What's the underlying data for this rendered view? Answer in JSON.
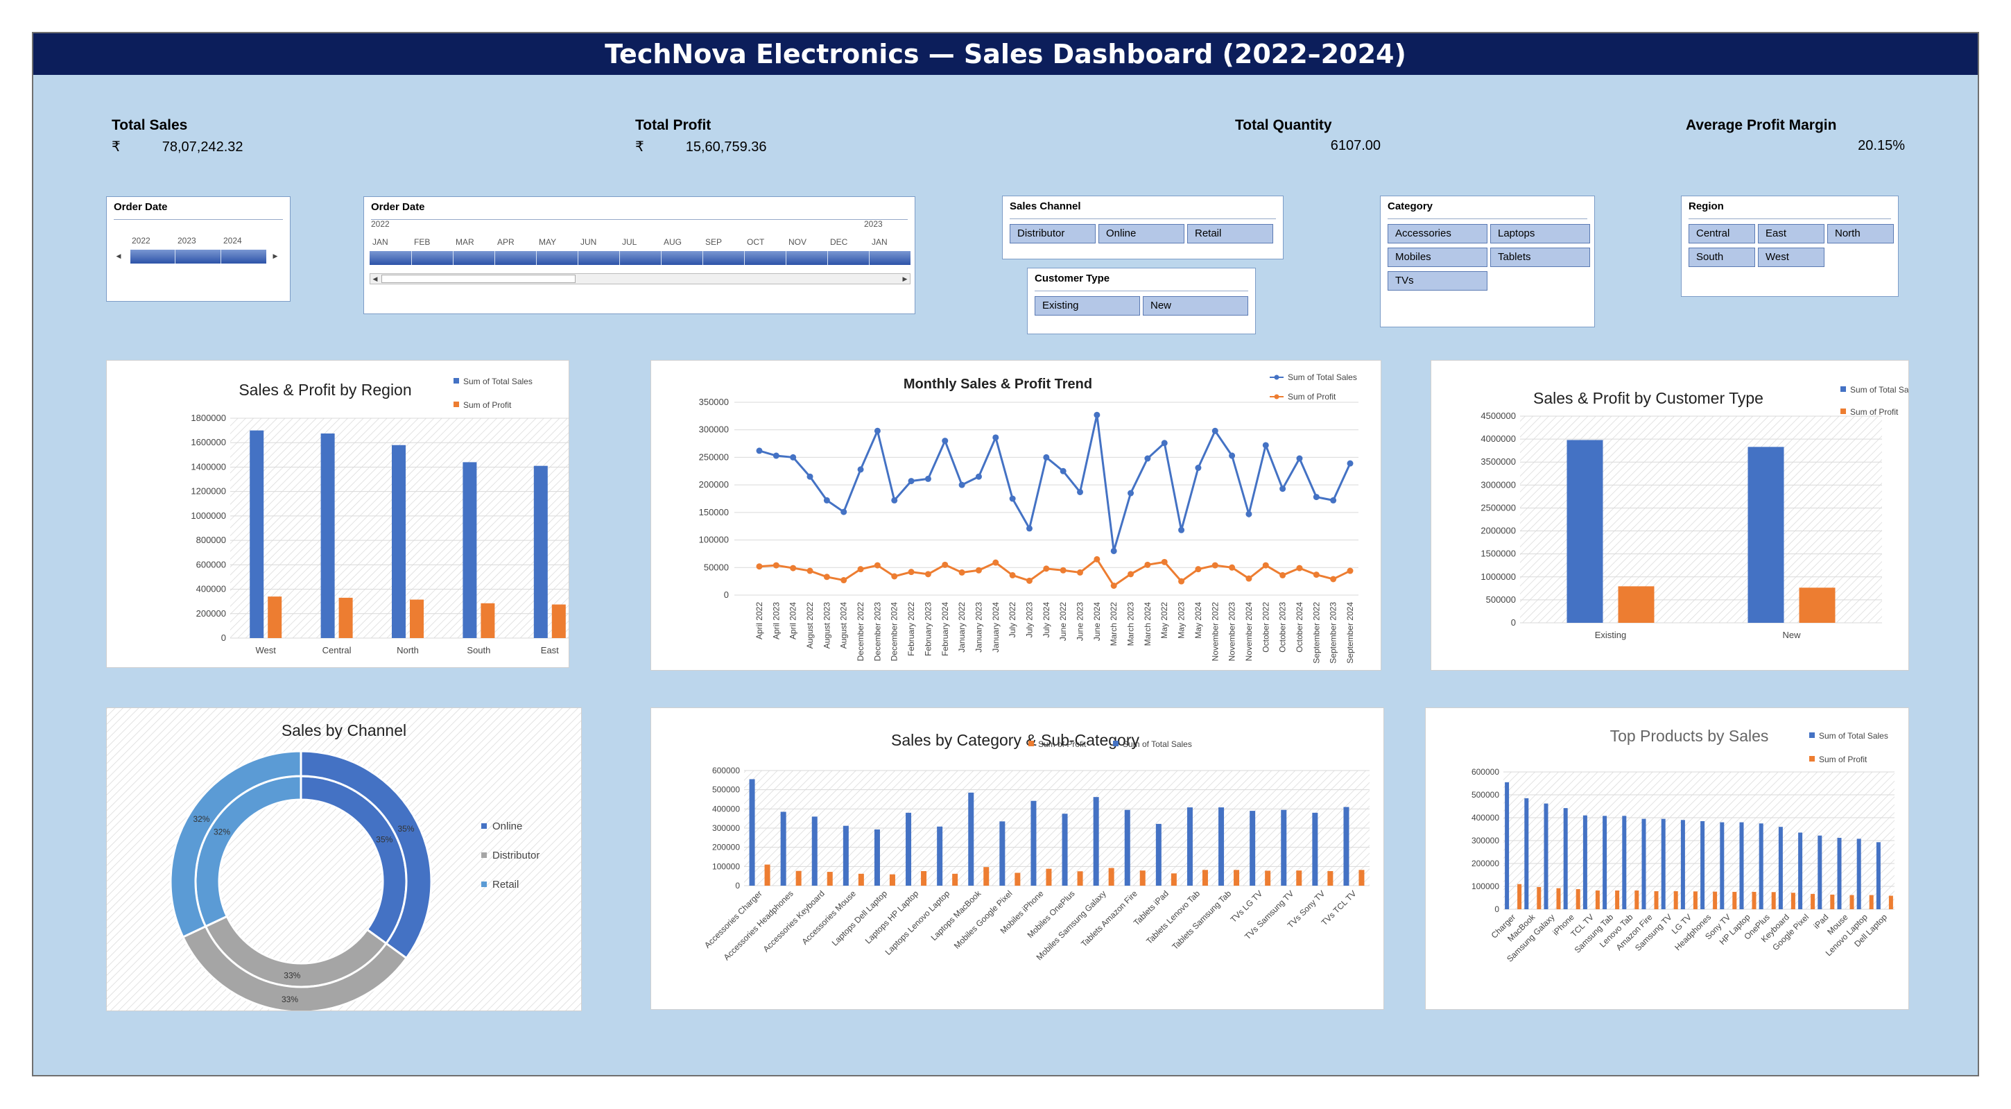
{
  "header": {
    "title": "TechNova Electronics — Sales Dashboard (2022–2024)"
  },
  "kpis": {
    "total_sales": {
      "label": "Total Sales",
      "currency": "₹",
      "value": "78,07,242.32"
    },
    "total_profit": {
      "label": "Total Profit",
      "currency": "₹",
      "value": "15,60,759.36"
    },
    "total_quantity": {
      "label": "Total Quantity",
      "value": "6107.00"
    },
    "avg_margin": {
      "label": "Average Profit Margin",
      "value": "20.15%"
    }
  },
  "slicers": {
    "order_date_years": {
      "title": "Order Date",
      "years": [
        "2022",
        "2023",
        "2024"
      ]
    },
    "order_date_months": {
      "title": "Order Date",
      "year_start": "2022",
      "year_next": "2023",
      "months": [
        "JAN",
        "FEB",
        "MAR",
        "APR",
        "MAY",
        "JUN",
        "JUL",
        "AUG",
        "SEP",
        "OCT",
        "NOV",
        "DEC",
        "JAN"
      ]
    },
    "sales_channel": {
      "title": "Sales Channel",
      "items": [
        "Distributor",
        "Online",
        "Retail"
      ]
    },
    "customer_type": {
      "title": "Customer Type",
      "items": [
        "Existing",
        "New"
      ]
    },
    "category": {
      "title": "Category",
      "items": [
        "Accessories",
        "Laptops",
        "Mobiles",
        "Tablets",
        "TVs"
      ]
    },
    "region": {
      "title": "Region",
      "items": [
        "Central",
        "East",
        "North",
        "South",
        "West"
      ]
    }
  },
  "legend": {
    "sales": "Sum of Total Sales",
    "profit": "Sum of Profit"
  },
  "colors": {
    "sales": "#4472c4",
    "profit": "#ed7d31",
    "online": "#4472c4",
    "distributor": "#a5a5a5",
    "retail": "#5b9bd5"
  },
  "chart_data": [
    {
      "id": "region",
      "type": "bar",
      "title": "Sales & Profit by Region",
      "categories": [
        "West",
        "Central",
        "North",
        "South",
        "East"
      ],
      "series": [
        {
          "name": "Sum of Total Sales",
          "values": [
            1700000,
            1675000,
            1580000,
            1440000,
            1410000
          ]
        },
        {
          "name": "Sum of Profit",
          "values": [
            340000,
            330000,
            315000,
            285000,
            275000
          ]
        }
      ],
      "yticks": [
        "0",
        "200000",
        "400000",
        "600000",
        "800000",
        "1000000",
        "1200000",
        "1400000",
        "1600000",
        "1800000"
      ],
      "ylim": [
        0,
        1800000
      ]
    },
    {
      "id": "trend",
      "type": "line",
      "title": "Monthly Sales & Profit Trend",
      "x": [
        "April 2022",
        "April 2023",
        "April 2024",
        "August 2022",
        "August 2023",
        "August 2024",
        "December 2022",
        "December 2023",
        "December 2024",
        "February 2022",
        "February 2023",
        "February 2024",
        "January 2022",
        "January 2023",
        "January 2024",
        "July 2022",
        "July 2023",
        "July 2024",
        "June 2022",
        "June 2023",
        "June 2024",
        "March 2022",
        "March 2023",
        "March 2024",
        "May 2022",
        "May 2023",
        "May 2024",
        "November 2022",
        "November 2023",
        "November 2024",
        "October 2022",
        "October 2023",
        "October 2024",
        "September 2022",
        "September 2023",
        "September 2024"
      ],
      "series": [
        {
          "name": "Sum of Total Sales",
          "values": [
            262000,
            253000,
            250000,
            215000,
            172000,
            151000,
            228000,
            298000,
            172000,
            207000,
            211000,
            280000,
            200000,
            215000,
            286000,
            175000,
            121000,
            250000,
            225000,
            187000,
            327000,
            80000,
            185000,
            248000,
            276000,
            118000,
            231000,
            298000,
            253000,
            147000,
            272000,
            193000,
            248000,
            178000,
            172000,
            239000
          ]
        },
        {
          "name": "Sum of Profit",
          "values": [
            52000,
            54000,
            49000,
            44000,
            33000,
            27000,
            47000,
            54000,
            34000,
            42000,
            38000,
            55000,
            41000,
            45000,
            59000,
            36000,
            26000,
            48000,
            45000,
            41000,
            65000,
            17000,
            38000,
            55000,
            60000,
            25000,
            47000,
            54000,
            50000,
            30000,
            54000,
            36000,
            49000,
            37000,
            29000,
            44000
          ]
        }
      ],
      "yticks": [
        "0",
        "50000",
        "100000",
        "150000",
        "200000",
        "250000",
        "300000",
        "350000"
      ],
      "ylim": [
        0,
        350000
      ]
    },
    {
      "id": "customer",
      "type": "bar",
      "title": "Sales & Profit by Customer Type",
      "categories": [
        "Existing",
        "New"
      ],
      "series": [
        {
          "name": "Sum of Total Sales",
          "values": [
            3980000,
            3830000
          ]
        },
        {
          "name": "Sum of Profit",
          "values": [
            795000,
            765000
          ]
        }
      ],
      "yticks": [
        "0",
        "500000",
        "1000000",
        "1500000",
        "2000000",
        "2500000",
        "3000000",
        "3500000",
        "4000000",
        "4500000"
      ],
      "ylim": [
        0,
        4500000
      ]
    },
    {
      "id": "channel",
      "type": "pie",
      "title": "Sales by Channel",
      "categories": [
        "Online",
        "Distributor",
        "Retail"
      ],
      "rings": [
        {
          "values": [
            35,
            33,
            32
          ],
          "labels": [
            "35%",
            "33%",
            "32%"
          ]
        },
        {
          "values": [
            35,
            33,
            32
          ],
          "labels": [
            "35%",
            "33%",
            "32%"
          ]
        }
      ]
    },
    {
      "id": "category",
      "type": "bar",
      "title": "Sales by Category & Sub-Category",
      "categories": [
        "Accessories Charger",
        "Accessories Headphones",
        "Accessories Keyboard",
        "Accessories Mouse",
        "Laptops Dell Laptop",
        "Laptops HP Laptop",
        "Laptops Lenovo Laptop",
        "Laptops MacBook",
        "Mobiles Google Pixel",
        "Mobiles iPhone",
        "Mobiles OnePlus",
        "Mobiles Samsung Galaxy",
        "Tablets Amazon Fire",
        "Tablets iPad",
        "Tablets Lenovo Tab",
        "Tablets Samsung Tab",
        "TVs LG TV",
        "TVs Samsung TV",
        "TVs Sony TV",
        "TVs TCL TV"
      ],
      "series": [
        {
          "name": "Sum of Total Sales",
          "values": [
            555000,
            385000,
            360000,
            312000,
            293000,
            380000,
            308000,
            485000,
            335000,
            442000,
            375000,
            462000,
            395000,
            322000,
            408000,
            408000,
            390000,
            395000,
            380000,
            410000
          ]
        },
        {
          "name": "Sum of Profit",
          "values": [
            110000,
            77000,
            72000,
            62000,
            59000,
            76000,
            62000,
            97000,
            67000,
            88000,
            75000,
            92000,
            79000,
            64000,
            82000,
            82000,
            78000,
            79000,
            76000,
            82000
          ]
        }
      ],
      "yticks": [
        "0",
        "100000",
        "200000",
        "300000",
        "400000",
        "500000",
        "600000"
      ],
      "ylim": [
        0,
        600000
      ]
    },
    {
      "id": "products",
      "type": "bar",
      "title": "Top Products by Sales",
      "categories": [
        "Charger",
        "MacBook",
        "Samsung Galaxy",
        "iPhone",
        "TCL TV",
        "Samsung Tab",
        "Lenovo Tab",
        "Amazon Fire",
        "Samsung TV",
        "LG TV",
        "Headphones",
        "Sony TV",
        "HP Laptop",
        "OnePlus",
        "Keyboard",
        "Google Pixel",
        "iPad",
        "Mouse",
        "Lenovo Laptop",
        "Dell Laptop"
      ],
      "series": [
        {
          "name": "Sum of Total Sales",
          "values": [
            555000,
            485000,
            462000,
            442000,
            410000,
            408000,
            408000,
            395000,
            395000,
            390000,
            385000,
            380000,
            380000,
            375000,
            360000,
            335000,
            322000,
            312000,
            308000,
            293000
          ]
        },
        {
          "name": "Sum of Profit",
          "values": [
            110000,
            97000,
            92000,
            88000,
            82000,
            82000,
            82000,
            79000,
            79000,
            78000,
            77000,
            76000,
            76000,
            75000,
            72000,
            67000,
            64000,
            62000,
            62000,
            59000
          ]
        }
      ],
      "yticks": [
        "0",
        "100000",
        "200000",
        "300000",
        "400000",
        "500000",
        "600000"
      ],
      "ylim": [
        0,
        600000
      ]
    }
  ]
}
